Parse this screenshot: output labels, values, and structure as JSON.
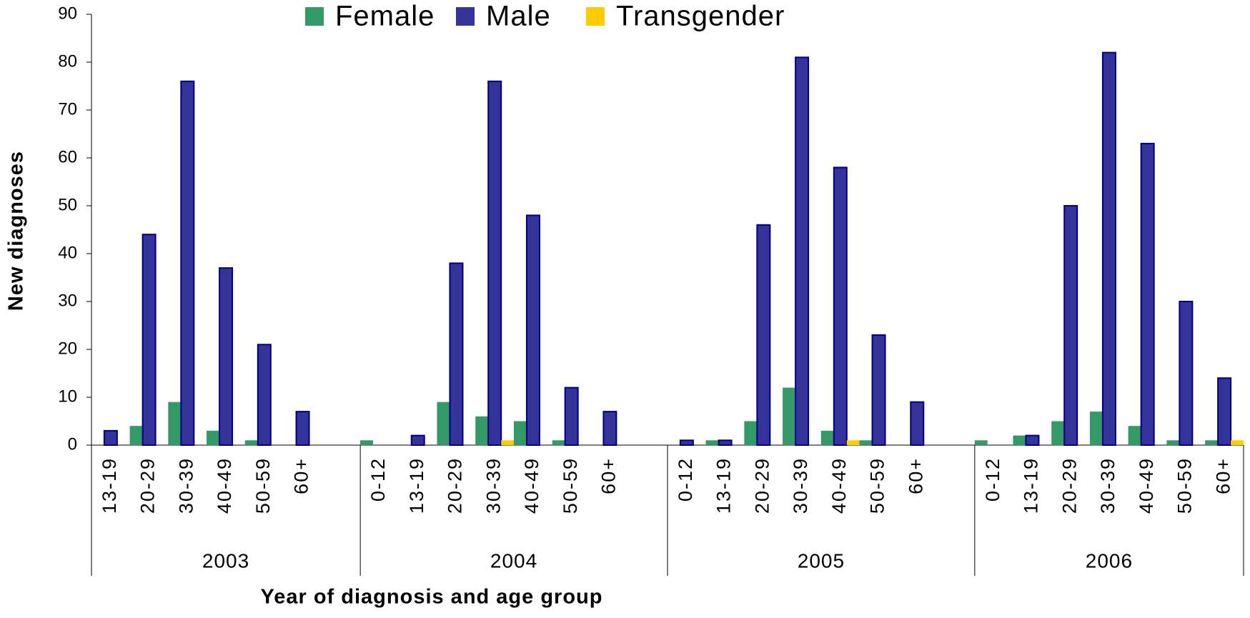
{
  "chart_data": {
    "type": "bar",
    "x_label": "Year of diagnosis and age group",
    "y_label": "New diagnoses",
    "groups": [
      "2003",
      "2004",
      "2005",
      "2006"
    ],
    "categories": [
      "13-19",
      "20-29",
      "30-39",
      "40-49",
      "50-59",
      "60+",
      null,
      "0-12",
      "13-19",
      "20-29",
      "30-39",
      "40-49",
      "50-59",
      "60+",
      null,
      "0-12",
      "13-19",
      "20-29",
      "30-39",
      "40-49",
      "50-59",
      "60+",
      null,
      "0-12",
      "13-19",
      "20-29",
      "30-39",
      "40-49",
      "50-59",
      "60+"
    ],
    "series": [
      {
        "name": "Female",
        "color": "#339966",
        "values": [
          0,
          4,
          9,
          3,
          1,
          0,
          null,
          1,
          0,
          9,
          6,
          5,
          1,
          0,
          null,
          0,
          1,
          5,
          12,
          3,
          1,
          0,
          null,
          1,
          2,
          5,
          7,
          4,
          1,
          1
        ]
      },
      {
        "name": "Male",
        "color": "#333399",
        "values": [
          3,
          44,
          76,
          37,
          21,
          7,
          null,
          0,
          2,
          38,
          76,
          48,
          12,
          7,
          null,
          1,
          1,
          46,
          81,
          58,
          23,
          9,
          null,
          0,
          2,
          50,
          82,
          63,
          30,
          14
        ]
      },
      {
        "name": "Transgender",
        "color": "#ffcc00",
        "values": [
          0,
          0,
          0,
          0,
          0,
          0,
          null,
          0,
          0,
          0,
          1,
          0,
          0,
          0,
          null,
          0,
          0,
          0,
          0,
          1,
          0,
          0,
          null,
          0,
          0,
          0,
          0,
          0,
          0,
          1
        ]
      }
    ],
    "ylim": [
      0,
      90
    ],
    "yticks": [
      0,
      10,
      20,
      30,
      40,
      50,
      60,
      70,
      80,
      90
    ],
    "grid": false,
    "legend": "top"
  }
}
